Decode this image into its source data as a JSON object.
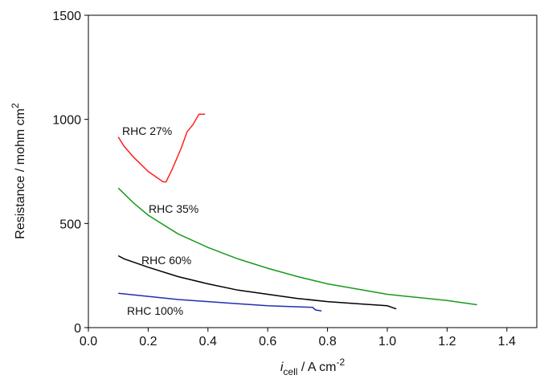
{
  "chart_data": {
    "type": "line",
    "xlabel": {
      "main": "i",
      "sub": "cell",
      "rest": " / A cm",
      "sup": "-2"
    },
    "ylabel": {
      "main": "Resistance / mohm cm",
      "sup": "2"
    },
    "xlim": [
      0,
      1.5
    ],
    "ylim": [
      0,
      1500
    ],
    "xticks": [
      {
        "value": 0,
        "label": "0.0"
      },
      0.2,
      0.4,
      0.6,
      0.8,
      {
        "value": 1,
        "label": "1.0"
      },
      1.2,
      1.4
    ],
    "yticks": [
      0,
      500,
      1000,
      1500
    ],
    "series": [
      {
        "name": "RHC 27%",
        "color": "#ff2020",
        "x": [
          0.1,
          0.12,
          0.15,
          0.2,
          0.25,
          0.26,
          0.28,
          0.31,
          0.33,
          0.35,
          0.37,
          0.39
        ],
        "values": [
          915,
          870,
          820,
          750,
          700,
          700,
          760,
          860,
          940,
          975,
          1025,
          1025
        ]
      },
      {
        "name": "RHC 35%",
        "color": "#1a9a1a",
        "x": [
          0.1,
          0.15,
          0.2,
          0.3,
          0.4,
          0.5,
          0.6,
          0.7,
          0.8,
          0.9,
          1.0,
          1.1,
          1.2,
          1.3
        ],
        "values": [
          670,
          600,
          540,
          450,
          385,
          330,
          285,
          245,
          210,
          185,
          160,
          145,
          130,
          110
        ]
      },
      {
        "name": "RHC 60%",
        "color": "#000000",
        "x": [
          0.1,
          0.12,
          0.2,
          0.3,
          0.4,
          0.5,
          0.6,
          0.7,
          0.8,
          0.9,
          1.0,
          1.03
        ],
        "values": [
          345,
          330,
          290,
          245,
          210,
          180,
          160,
          140,
          125,
          115,
          105,
          90
        ]
      },
      {
        "name": "RHC 100%",
        "color": "#2030b0",
        "x": [
          0.1,
          0.2,
          0.3,
          0.4,
          0.5,
          0.6,
          0.7,
          0.75,
          0.76,
          0.78
        ],
        "values": [
          165,
          150,
          135,
          125,
          115,
          105,
          100,
          97,
          85,
          80
        ]
      }
    ]
  }
}
